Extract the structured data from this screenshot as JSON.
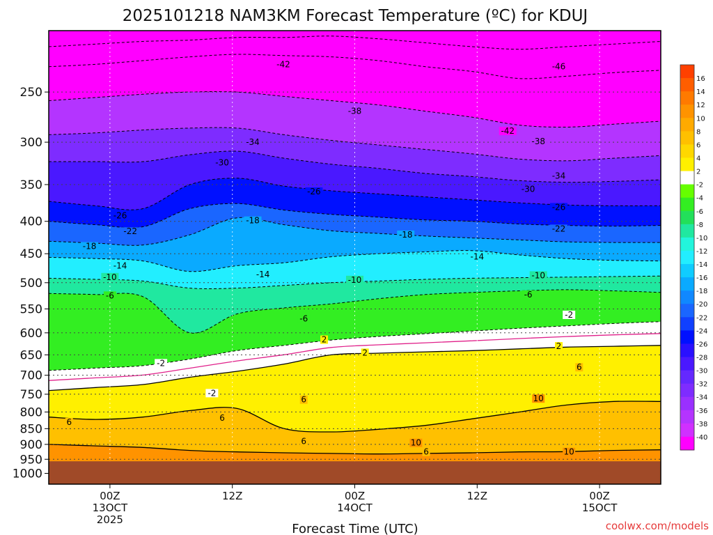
{
  "chart_data": {
    "type": "heatmap",
    "title": "2025101218 NAM3KM Forecast Temperature (ºC) for KDUJ",
    "xlabel": "Forecast Time (UTC)",
    "credit": "coolwx.com/models",
    "x_ticks": [
      {
        "hour": 6,
        "lines": [
          "00Z",
          "13OCT",
          "2025"
        ]
      },
      {
        "hour": 18,
        "lines": [
          "12Z"
        ]
      },
      {
        "hour": 30,
        "lines": [
          "00Z",
          "14OCT"
        ]
      },
      {
        "hour": 42,
        "lines": [
          "12Z"
        ]
      },
      {
        "hour": 54,
        "lines": [
          "00Z",
          "15OCT"
        ]
      }
    ],
    "xlim": [
      0,
      60
    ],
    "y_ticks": [
      250,
      300,
      350,
      400,
      450,
      500,
      550,
      600,
      650,
      700,
      750,
      800,
      850,
      900,
      950,
      1000
    ],
    "ylim_hpa": [
      200,
      1040
    ],
    "y_scale": "log",
    "surface_pressure_hpa": 957,
    "colorbar": {
      "labels": [
        "16",
        "14",
        "12",
        "10",
        "8",
        "6",
        "4",
        "2",
        "-2",
        "-4",
        "-6",
        "-8",
        "-10",
        "-12",
        "-14",
        "-16",
        "-18",
        "-20",
        "-22",
        "-24",
        "-26",
        "-28",
        "-30",
        "-32",
        "-34",
        "-36",
        "-38",
        "-40"
      ],
      "bands": [
        {
          "min": 16,
          "max": 18,
          "color": "#ff4000"
        },
        {
          "min": 14,
          "max": 16,
          "color": "#ff5e00"
        },
        {
          "min": 12,
          "max": 14,
          "color": "#ff7a00"
        },
        {
          "min": 10,
          "max": 12,
          "color": "#ff9300"
        },
        {
          "min": 8,
          "max": 10,
          "color": "#ffaa00"
        },
        {
          "min": 6,
          "max": 8,
          "color": "#ffc000"
        },
        {
          "min": 4,
          "max": 6,
          "color": "#ffd800"
        },
        {
          "min": 2,
          "max": 4,
          "color": "#fff000"
        },
        {
          "min": -2,
          "max": 2,
          "color": "#ffffff"
        },
        {
          "min": -4,
          "max": -2,
          "color": "#66ff00"
        },
        {
          "min": -6,
          "max": -4,
          "color": "#33ee22"
        },
        {
          "min": -8,
          "max": -6,
          "color": "#22e05a"
        },
        {
          "min": -10,
          "max": -8,
          "color": "#20e8a0"
        },
        {
          "min": -12,
          "max": -10,
          "color": "#22f5dc"
        },
        {
          "min": -14,
          "max": -12,
          "color": "#22eeff"
        },
        {
          "min": -16,
          "max": -14,
          "color": "#10ccff"
        },
        {
          "min": -18,
          "max": -16,
          "color": "#0aaaff"
        },
        {
          "min": -20,
          "max": -18,
          "color": "#1088ff"
        },
        {
          "min": -22,
          "max": -20,
          "color": "#1a66ff"
        },
        {
          "min": -24,
          "max": -22,
          "color": "#1040ff"
        },
        {
          "min": -26,
          "max": -24,
          "color": "#0010ff"
        },
        {
          "min": -28,
          "max": -26,
          "color": "#2a10ff"
        },
        {
          "min": -30,
          "max": -28,
          "color": "#4a18ff"
        },
        {
          "min": -32,
          "max": -30,
          "color": "#6428ff"
        },
        {
          "min": -34,
          "max": -32,
          "color": "#7e2cff"
        },
        {
          "min": -36,
          "max": -34,
          "color": "#9a30ff"
        },
        {
          "min": -38,
          "max": -36,
          "color": "#b434ff"
        },
        {
          "min": -40,
          "max": -38,
          "color": "#d030ff"
        },
        {
          "min": -60,
          "max": -40,
          "color": "#ff00ff"
        }
      ]
    },
    "below_ground_color": "#a04a28",
    "series": [
      {
        "t": -46,
        "p": [
          212,
          210,
          208,
          207,
          205,
          205,
          204,
          206,
          209,
          212,
          214,
          212,
          210,
          208
        ]
      },
      {
        "t": -42,
        "p": [
          228,
          226,
          223,
          220,
          218,
          219,
          220,
          223,
          228,
          232,
          238,
          236,
          233,
          231
        ]
      },
      {
        "t": -38,
        "p": [
          258,
          255,
          252,
          250,
          250,
          254,
          258,
          262,
          268,
          274,
          282,
          284,
          281,
          278
        ]
      },
      {
        "t": -34,
        "p": [
          292,
          290,
          287,
          285,
          285,
          292,
          298,
          303,
          308,
          313,
          319,
          321,
          318,
          315
        ]
      },
      {
        "t": -30,
        "p": [
          322,
          322,
          322,
          314,
          310,
          318,
          325,
          330,
          336,
          340,
          345,
          347,
          346,
          344
        ]
      },
      {
        "t": -26,
        "p": [
          372,
          378,
          382,
          350,
          342,
          352,
          358,
          362,
          366,
          370,
          374,
          377,
          378,
          378
        ]
      },
      {
        "t": -22,
        "p": [
          400,
          405,
          408,
          382,
          375,
          384,
          390,
          394,
          398,
          400,
          404,
          406,
          407,
          406
        ]
      },
      {
        "t": -18,
        "p": [
          430,
          433,
          436,
          420,
          395,
          405,
          414,
          418,
          422,
          425,
          428,
          431,
          432,
          432
        ]
      },
      {
        "t": -14,
        "p": [
          456,
          458,
          462,
          480,
          470,
          465,
          455,
          450,
          447,
          445,
          452,
          458,
          461,
          462
        ]
      },
      {
        "t": -10,
        "p": [
          492,
          494,
          497,
          510,
          510,
          505,
          500,
          497,
          494,
          492,
          491,
          490,
          489,
          488
        ]
      },
      {
        "t": -6,
        "p": [
          520,
          522,
          526,
          600,
          560,
          548,
          540,
          530,
          522,
          518,
          515,
          513,
          515,
          518
        ]
      },
      {
        "t": -2,
        "p": [
          688,
          682,
          676,
          660,
          640,
          628,
          616,
          608,
          602,
          596,
          590,
          585,
          580,
          576
        ]
      },
      {
        "t": 2,
        "p": [
          740,
          732,
          724,
          705,
          690,
          672,
          650,
          646,
          643,
          640,
          636,
          632,
          630,
          628
        ]
      },
      {
        "t": 6,
        "p": [
          815,
          822,
          815,
          796,
          790,
          850,
          860,
          852,
          840,
          820,
          800,
          780,
          770,
          770
        ]
      },
      {
        "t": 10,
        "p": [
          900,
          905,
          910,
          920,
          925,
          928,
          930,
          932,
          930,
          928,
          925,
          924,
          920,
          918
        ]
      }
    ],
    "contour_labels": [
      {
        "text": "-42",
        "hour": 23,
        "p": 226
      },
      {
        "text": "-46",
        "hour": 50,
        "p": 228
      },
      {
        "text": "-38",
        "hour": 30,
        "p": 268
      },
      {
        "text": "-42",
        "hour": 45,
        "p": 288
      },
      {
        "text": "-38",
        "hour": 48,
        "p": 299
      },
      {
        "text": "-34",
        "hour": 20,
        "p": 300
      },
      {
        "text": "-34",
        "hour": 50,
        "p": 339
      },
      {
        "text": "-30",
        "hour": 17,
        "p": 323
      },
      {
        "text": "-30",
        "hour": 47,
        "p": 356
      },
      {
        "text": "-26",
        "hour": 26,
        "p": 359
      },
      {
        "text": "-26",
        "hour": 50,
        "p": 380
      },
      {
        "text": "-26",
        "hour": 7,
        "p": 392
      },
      {
        "text": "-22",
        "hour": 50,
        "p": 411
      },
      {
        "text": "-18",
        "hour": 20,
        "p": 399
      },
      {
        "text": "-18",
        "hour": 35,
        "p": 420
      },
      {
        "text": "-22",
        "hour": 8,
        "p": 415
      },
      {
        "text": "-18",
        "hour": 4,
        "p": 438
      },
      {
        "text": "-14",
        "hour": 42,
        "p": 455
      },
      {
        "text": "-14",
        "hour": 7,
        "p": 470
      },
      {
        "text": "-14",
        "hour": 21,
        "p": 485
      },
      {
        "text": "-10",
        "hour": 30,
        "p": 495
      },
      {
        "text": "-10",
        "hour": 48,
        "p": 487
      },
      {
        "text": "-10",
        "hour": 6,
        "p": 490
      },
      {
        "text": "-6",
        "hour": 6,
        "p": 524
      },
      {
        "text": "-6",
        "hour": 47,
        "p": 522
      },
      {
        "text": "-6",
        "hour": 25,
        "p": 570
      },
      {
        "text": "-2",
        "hour": 51,
        "p": 562
      },
      {
        "text": "2",
        "hour": 27,
        "p": 615
      },
      {
        "text": "2",
        "hour": 31,
        "p": 645
      },
      {
        "text": "2",
        "hour": 50,
        "p": 630
      },
      {
        "text": "-2",
        "hour": 11,
        "p": 670
      },
      {
        "text": "-2",
        "hour": 16,
        "p": 747
      },
      {
        "text": "6",
        "hour": 52,
        "p": 680
      },
      {
        "text": "10",
        "hour": 48,
        "p": 762
      },
      {
        "text": "6",
        "hour": 25,
        "p": 765
      },
      {
        "text": "6",
        "hour": 17,
        "p": 818
      },
      {
        "text": "6",
        "hour": 2,
        "p": 830
      },
      {
        "text": "10",
        "hour": 36,
        "p": 895
      },
      {
        "text": "6",
        "hour": 25,
        "p": 890
      },
      {
        "text": "6",
        "hour": 37,
        "p": 925
      },
      {
        "text": "10",
        "hour": 51,
        "p": 925
      }
    ]
  }
}
